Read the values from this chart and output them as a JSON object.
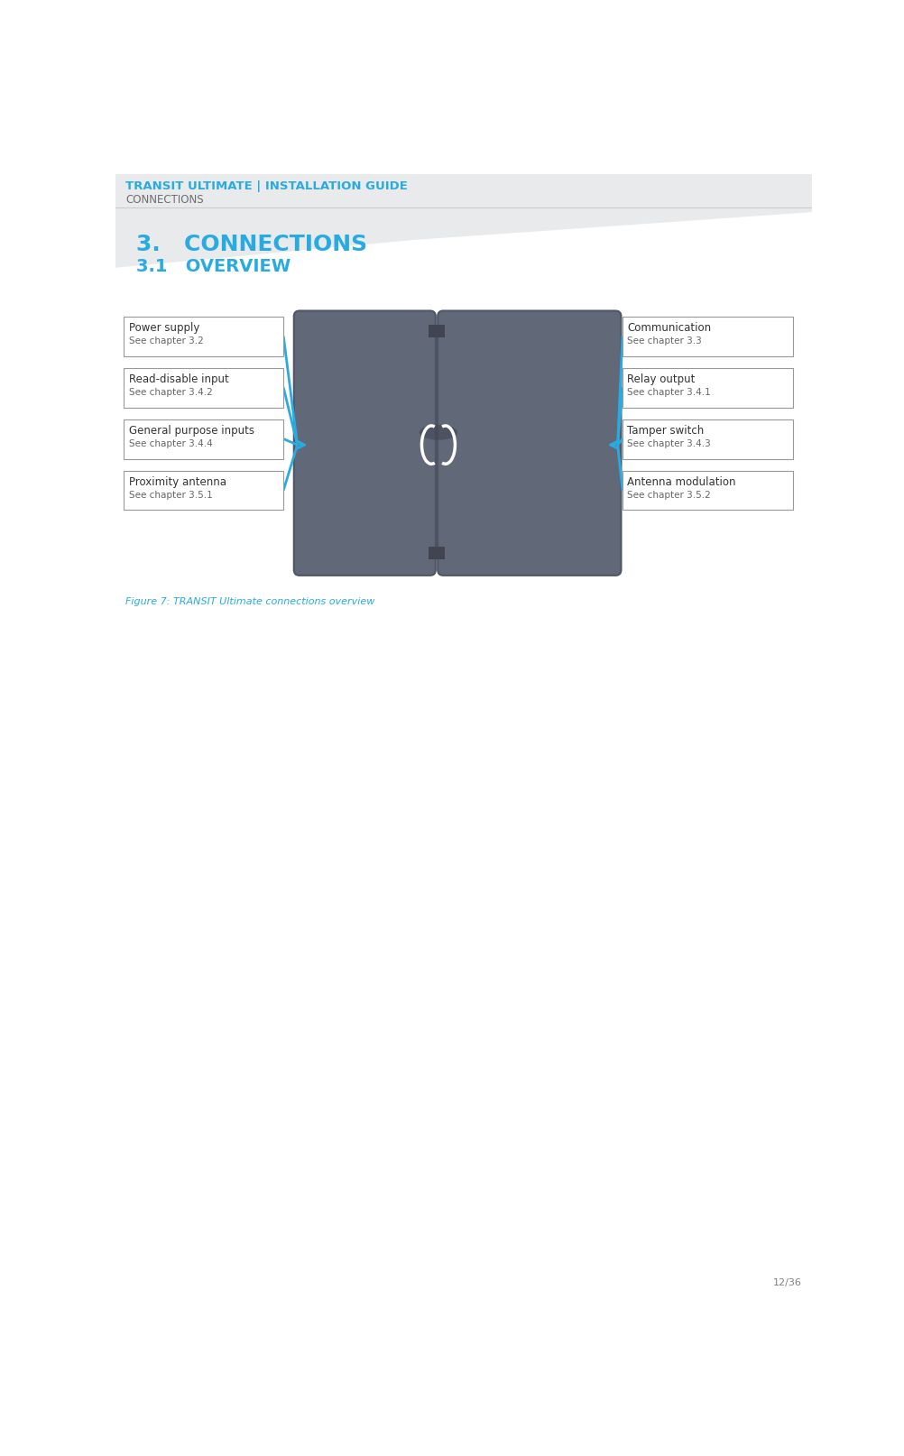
{
  "bg_color": "#ffffff",
  "header_title": "TRANSIT ULTIMATE | INSTALLATION GUIDE",
  "header_subtitle": "CONNECTIONS",
  "header_title_color": "#29abe2",
  "header_subtitle_color": "#6d6e71",
  "section_title": "3.   CONNECTIONS",
  "section_subtitle": "3.1   OVERVIEW",
  "section_color": "#29abe2",
  "figure_caption": "Figure 7: TRANSIT Ultimate connections overview",
  "caption_color": "#29abe2",
  "page_number": "12/36",
  "page_color": "#808080",
  "left_labels": [
    {
      "title": "Power supply",
      "sub": "See chapter 3.2"
    },
    {
      "title": "Read-disable input",
      "sub": "See chapter 3.4.2"
    },
    {
      "title": "General purpose inputs",
      "sub": "See chapter 3.4.4"
    },
    {
      "title": "Proximity antenna",
      "sub": "See chapter 3.5.1"
    }
  ],
  "right_labels": [
    {
      "title": "Communication",
      "sub": "See chapter 3.3"
    },
    {
      "title": "Relay output",
      "sub": "See chapter 3.4.1"
    },
    {
      "title": "Tamper switch",
      "sub": "See chapter 3.4.3"
    },
    {
      "title": "Antenna modulation",
      "sub": "See chapter 3.5.2"
    }
  ],
  "arrow_color": "#29abe2",
  "box_edge_color": "#999999",
  "device_body_color": "#616878",
  "device_body_dark": "#4e5566",
  "device_connector_color": "#404550",
  "stripe_color": "#e8eaec",
  "header_line_color": "#cccccc"
}
